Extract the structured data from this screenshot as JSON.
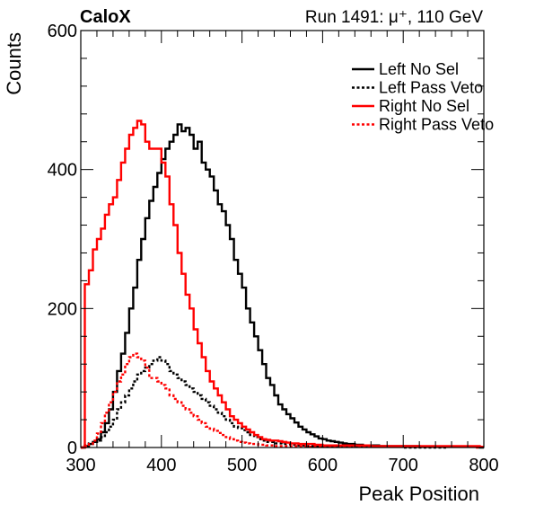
{
  "header": {
    "label_left": "CaloX",
    "label_right": "Run 1491:   μ⁺, 110 GeV"
  },
  "chart_data": {
    "type": "line",
    "xlabel": "Peak Position",
    "ylabel": "Counts",
    "xlim": [
      300,
      800
    ],
    "ylim": [
      0,
      600
    ],
    "xticks": [
      300,
      400,
      500,
      600,
      700,
      800
    ],
    "yticks": [
      0,
      200,
      400,
      600
    ],
    "grid": false,
    "legend_position": "top-right",
    "bin_width": 5,
    "series": [
      {
        "name": "Left No Sel",
        "color": "#000000",
        "dash": "solid",
        "x": [
          300,
          305,
          310,
          315,
          320,
          325,
          330,
          335,
          340,
          345,
          350,
          355,
          360,
          365,
          370,
          375,
          380,
          385,
          390,
          395,
          400,
          405,
          410,
          415,
          420,
          425,
          430,
          435,
          440,
          445,
          450,
          455,
          460,
          465,
          470,
          475,
          480,
          485,
          490,
          495,
          500,
          505,
          510,
          515,
          520,
          525,
          530,
          535,
          540,
          545,
          550,
          555,
          560,
          565,
          570,
          575,
          580,
          585,
          590,
          595,
          600,
          605,
          610,
          615,
          620,
          625,
          630,
          640,
          650,
          660,
          670,
          680,
          690,
          700,
          720,
          740,
          760,
          780,
          795
        ],
        "values": [
          0,
          2,
          5,
          8,
          12,
          22,
          35,
          55,
          80,
          110,
          135,
          165,
          200,
          230,
          270,
          300,
          330,
          355,
          375,
          395,
          415,
          430,
          440,
          450,
          465,
          455,
          460,
          450,
          430,
          440,
          410,
          400,
          390,
          370,
          350,
          340,
          320,
          300,
          270,
          250,
          230,
          200,
          180,
          160,
          140,
          120,
          100,
          90,
          75,
          62,
          55,
          48,
          42,
          36,
          30,
          26,
          22,
          19,
          16,
          13,
          12,
          10,
          9,
          8,
          7,
          6,
          5,
          4,
          3,
          3,
          2,
          2,
          2,
          2,
          1,
          1,
          1,
          1,
          0
        ]
      },
      {
        "name": "Left Pass Veto",
        "color": "#000000",
        "dash": "dotted",
        "x": [
          300,
          305,
          310,
          315,
          320,
          325,
          330,
          335,
          340,
          345,
          350,
          355,
          360,
          365,
          370,
          375,
          380,
          385,
          390,
          395,
          400,
          405,
          410,
          415,
          420,
          425,
          430,
          435,
          440,
          445,
          450,
          455,
          460,
          465,
          470,
          475,
          480,
          485,
          490,
          495,
          500,
          505,
          510,
          515,
          520,
          525,
          530,
          540,
          550,
          560,
          570,
          580,
          600,
          620,
          640,
          660,
          700,
          750
        ],
        "values": [
          0,
          3,
          6,
          8,
          10,
          15,
          22,
          30,
          40,
          55,
          65,
          75,
          85,
          95,
          105,
          110,
          115,
          120,
          125,
          130,
          125,
          120,
          110,
          105,
          100,
          95,
          90,
          85,
          80,
          75,
          70,
          65,
          60,
          55,
          50,
          45,
          40,
          35,
          30,
          28,
          25,
          22,
          18,
          15,
          12,
          10,
          8,
          6,
          5,
          4,
          3,
          2,
          2,
          1,
          1,
          1,
          0,
          0
        ]
      },
      {
        "name": "Right No Sel",
        "color": "#ff0000",
        "dash": "solid",
        "x": [
          300,
          305,
          310,
          315,
          320,
          325,
          330,
          335,
          340,
          345,
          350,
          355,
          360,
          365,
          370,
          375,
          380,
          385,
          390,
          395,
          400,
          405,
          410,
          415,
          420,
          425,
          430,
          435,
          440,
          445,
          450,
          455,
          460,
          465,
          470,
          475,
          480,
          485,
          490,
          495,
          500,
          505,
          510,
          515,
          520,
          525,
          530,
          535,
          540,
          545,
          550,
          555,
          560,
          570,
          580,
          590,
          600,
          620,
          640,
          660,
          680,
          700,
          720,
          740,
          760,
          780,
          795
        ],
        "values": [
          0,
          235,
          255,
          285,
          300,
          315,
          335,
          350,
          360,
          385,
          410,
          430,
          450,
          460,
          470,
          465,
          440,
          430,
          430,
          430,
          410,
          390,
          350,
          320,
          280,
          250,
          220,
          200,
          170,
          150,
          130,
          110,
          95,
          85,
          75,
          65,
          55,
          45,
          40,
          35,
          30,
          26,
          22,
          18,
          15,
          12,
          11,
          10,
          10,
          9,
          8,
          7,
          6,
          5,
          5,
          4,
          3,
          3,
          3,
          2,
          2,
          2,
          2,
          2,
          2,
          2,
          1
        ]
      },
      {
        "name": "Right Pass Veto",
        "color": "#ff0000",
        "dash": "dotted",
        "x": [
          300,
          305,
          310,
          315,
          320,
          325,
          330,
          335,
          340,
          345,
          350,
          355,
          360,
          365,
          370,
          375,
          380,
          385,
          390,
          395,
          400,
          405,
          410,
          415,
          420,
          425,
          430,
          435,
          440,
          445,
          450,
          455,
          460,
          465,
          470,
          475,
          480,
          485,
          490,
          495,
          500,
          505,
          510,
          520,
          530,
          540,
          560,
          580,
          600,
          650,
          700,
          750,
          790
        ],
        "values": [
          0,
          2,
          5,
          10,
          20,
          35,
          50,
          65,
          80,
          95,
          105,
          120,
          130,
          135,
          130,
          125,
          115,
          100,
          100,
          95,
          90,
          85,
          75,
          70,
          65,
          60,
          55,
          50,
          45,
          40,
          35,
          30,
          27,
          24,
          21,
          18,
          15,
          12,
          10,
          8,
          7,
          6,
          5,
          4,
          3,
          2,
          2,
          1,
          1,
          1,
          1,
          1,
          0
        ]
      }
    ]
  }
}
